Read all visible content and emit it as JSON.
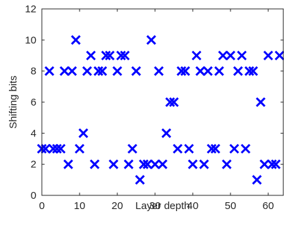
{
  "chart_data": {
    "type": "scatter",
    "title": "",
    "xlabel": "Layer depth",
    "ylabel": "Shifting bits",
    "xlim": [
      0,
      64
    ],
    "ylim": [
      0,
      12
    ],
    "xticks": [
      0,
      10,
      20,
      30,
      40,
      50,
      60
    ],
    "yticks": [
      0,
      2,
      4,
      6,
      8,
      10,
      12
    ],
    "grid": false,
    "marker": "x",
    "color": "#0000ff",
    "series": [
      {
        "x": [
          0,
          1,
          2,
          3,
          4,
          5,
          6,
          7,
          8,
          9,
          10,
          11,
          12,
          13,
          14,
          15,
          16,
          17,
          18,
          19,
          20,
          21,
          22,
          23,
          24,
          25,
          26,
          27,
          28,
          29,
          30,
          31,
          32,
          33,
          34,
          35,
          36,
          37,
          38,
          39,
          40,
          41,
          42,
          43,
          44,
          45,
          46,
          47,
          48,
          49,
          50,
          51,
          52,
          53,
          54,
          55,
          56,
          57,
          58,
          59,
          60,
          61,
          62,
          63
        ],
        "y": [
          3,
          3,
          8,
          3,
          3,
          3,
          8,
          2,
          8,
          10,
          3,
          4,
          8,
          9,
          2,
          8,
          8,
          9,
          9,
          2,
          8,
          9,
          9,
          2,
          3,
          8,
          1,
          2,
          2,
          10,
          2,
          8,
          2,
          4,
          6,
          6,
          3,
          8,
          8,
          3,
          2,
          9,
          8,
          2,
          8,
          3,
          3,
          8,
          9,
          2,
          9,
          3,
          8,
          9,
          3,
          8,
          8,
          1,
          6,
          2,
          9,
          2,
          2,
          9
        ]
      }
    ]
  }
}
